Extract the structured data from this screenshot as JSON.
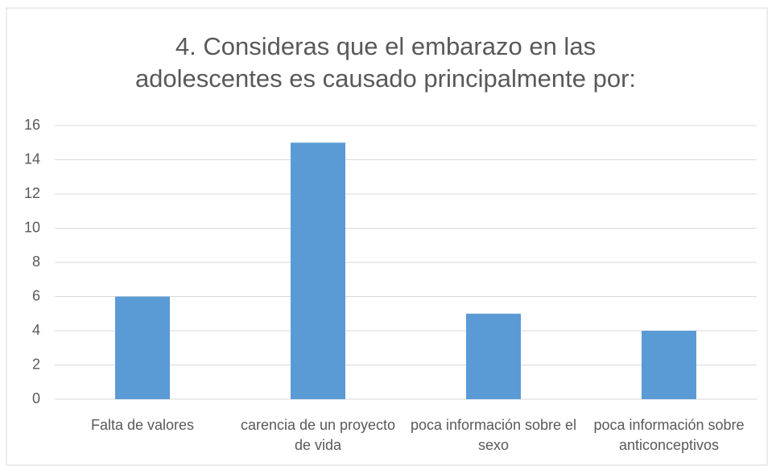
{
  "chart_data": {
    "type": "bar",
    "title": "4. Consideras que el embarazo en las adolescentes es causado principalmente por:",
    "categories": [
      "Falta de valores",
      "carencia de un proyecto de vida",
      "poca información sobre el sexo",
      "poca información sobre anticonceptivos"
    ],
    "values": [
      6,
      15,
      5,
      4
    ],
    "color": "#5b9bd5",
    "ylim": [
      0,
      16
    ],
    "yticks": [
      0,
      2,
      4,
      6,
      8,
      10,
      12,
      14,
      16
    ],
    "grid": true
  }
}
